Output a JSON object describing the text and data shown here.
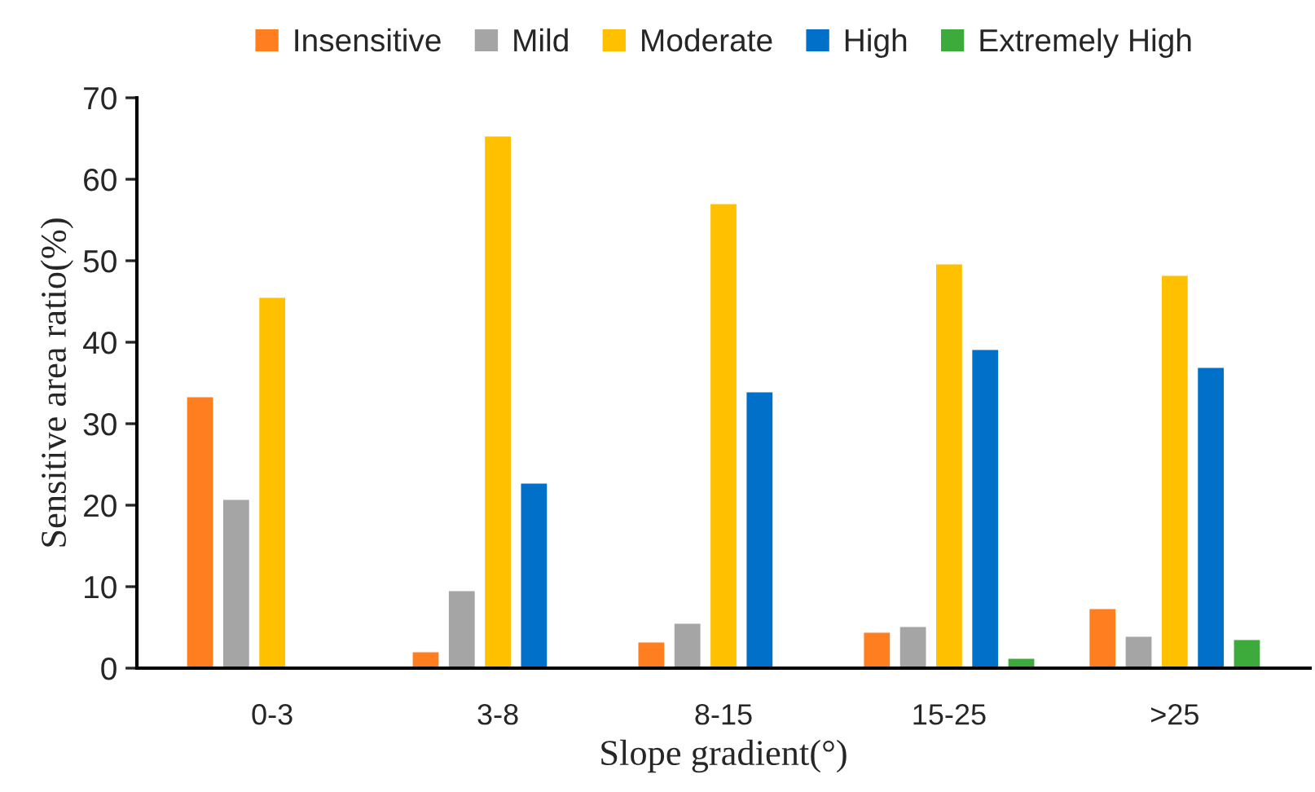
{
  "chart_data": {
    "type": "bar",
    "xlabel": "Slope gradient(°)",
    "ylabel": "Sensitive area ratio(%)",
    "categories": [
      "0-3",
      "3-8",
      "8-15",
      "15-25",
      ">25"
    ],
    "series": [
      {
        "name": "Insensitive",
        "color": "#ff7f20",
        "values": [
          33.4,
          2.1,
          3.3,
          4.5,
          7.4
        ]
      },
      {
        "name": "Mild",
        "color": "#a5a5a5",
        "values": [
          20.8,
          9.6,
          5.6,
          5.2,
          4.0
        ]
      },
      {
        "name": "Moderate",
        "color": "#ffc000",
        "values": [
          45.6,
          65.4,
          57.1,
          49.7,
          48.3
        ]
      },
      {
        "name": "High",
        "color": "#0070c8",
        "values": [
          null,
          22.8,
          34.0,
          39.2,
          37.0
        ]
      },
      {
        "name": "Extremely High",
        "color": "#3cab3c",
        "values": [
          null,
          null,
          null,
          1.3,
          3.6
        ]
      }
    ],
    "ylim": [
      0,
      70
    ],
    "yticks": [
      0,
      10,
      20,
      30,
      40,
      50,
      60,
      70
    ],
    "grid": false,
    "legend": "top"
  }
}
